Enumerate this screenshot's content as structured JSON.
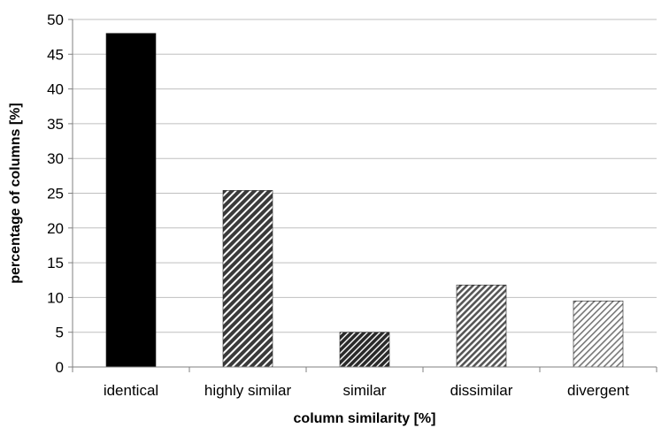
{
  "chart_data": {
    "type": "bar",
    "title": "",
    "xlabel": "column similarity [%]",
    "ylabel": "percentage of columns [%]",
    "ylim": [
      0,
      50
    ],
    "yticks": [
      0,
      5,
      10,
      15,
      20,
      25,
      30,
      35,
      40,
      45,
      50
    ],
    "grid": true,
    "legend": "none",
    "categories": [
      "identical",
      "highly similar",
      "similar",
      "dissimilar",
      "divergent"
    ],
    "values": [
      48,
      25.4,
      5,
      11.8,
      9.5
    ],
    "fills": [
      {
        "pattern": "solid",
        "color": "#000000"
      },
      {
        "pattern": "dense-diagonal-stripes",
        "color": "#3a3a3a"
      },
      {
        "pattern": "dense-diagonal-stripes",
        "color": "#2a2a2a"
      },
      {
        "pattern": "medium-diagonal-stripes",
        "color": "#555555"
      },
      {
        "pattern": "light-diagonal-stripes",
        "color": "#777777"
      }
    ],
    "gridline_color": "#bfbfbf",
    "axis_color": "#808080"
  }
}
